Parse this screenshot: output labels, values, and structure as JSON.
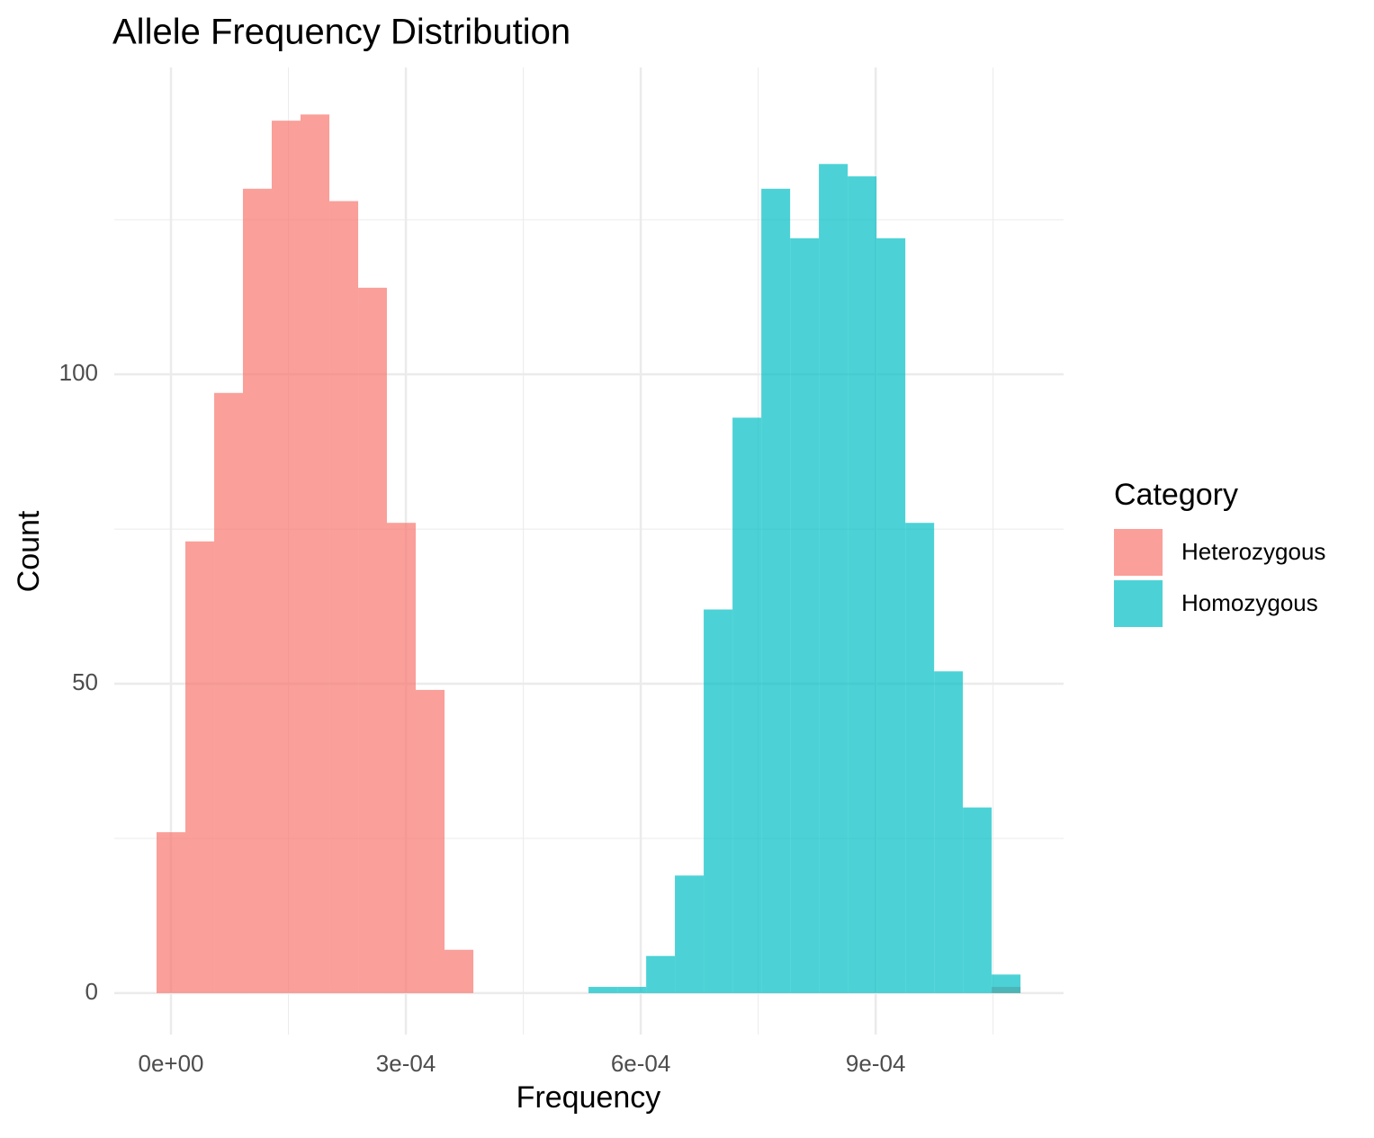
{
  "chart_data": {
    "type": "histogram",
    "title": "Allele Frequency Distribution",
    "x_label": "Frequency",
    "y_label": "Count",
    "legend_title": "Category",
    "bins": [
      -1.84e-05,
      1.84e-05,
      5.52e-05,
      9.19e-05,
      0.0001287,
      0.0001655,
      0.0002023,
      0.0002391,
      0.0002758,
      0.0003126,
      0.0003494,
      0.0003862,
      0.000423,
      0.0004597,
      0.0004965,
      0.0005333,
      0.0005701,
      0.0006069,
      0.0006436,
      0.0006804,
      0.0007172,
      0.000754,
      0.0007908,
      0.0008275,
      0.0008643,
      0.0009011,
      0.0009379,
      0.0009747,
      0.0010114,
      0.0010482,
      0.001085
    ],
    "series": [
      {
        "name": "Heterozygous",
        "color": "#F8766D",
        "values": [
          26,
          73,
          97,
          130,
          141,
          142,
          128,
          114,
          76,
          49,
          7,
          0,
          0,
          0,
          0,
          0,
          0,
          0,
          0,
          0,
          0,
          0,
          0,
          0,
          0,
          0,
          0,
          0,
          0,
          1
        ]
      },
      {
        "name": "Homozygous",
        "color": "#00BFC4",
        "values": [
          0,
          0,
          0,
          0,
          0,
          0,
          0,
          0,
          0,
          0,
          0,
          0,
          0,
          0,
          0,
          1,
          1,
          6,
          19,
          62,
          93,
          130,
          122,
          134,
          132,
          122,
          76,
          52,
          30,
          3
        ]
      }
    ],
    "opacity": 0.7,
    "xlim": [
      -7.24e-05,
      0.00114
    ],
    "xticks": [
      {
        "value": 0,
        "label": "0e+00"
      },
      {
        "value": 0.0003,
        "label": "3e-04"
      },
      {
        "value": 0.0006,
        "label": "6e-04"
      },
      {
        "value": 0.0009,
        "label": "9e-04"
      }
    ],
    "xminor": [
      0.00015,
      0.00045,
      0.00075,
      0.00105
    ],
    "ylim": [
      -6.7,
      149.6
    ],
    "yticks": [
      0,
      50,
      100
    ],
    "yminor": [
      25,
      75,
      125
    ],
    "grid": true,
    "legend": "right"
  }
}
